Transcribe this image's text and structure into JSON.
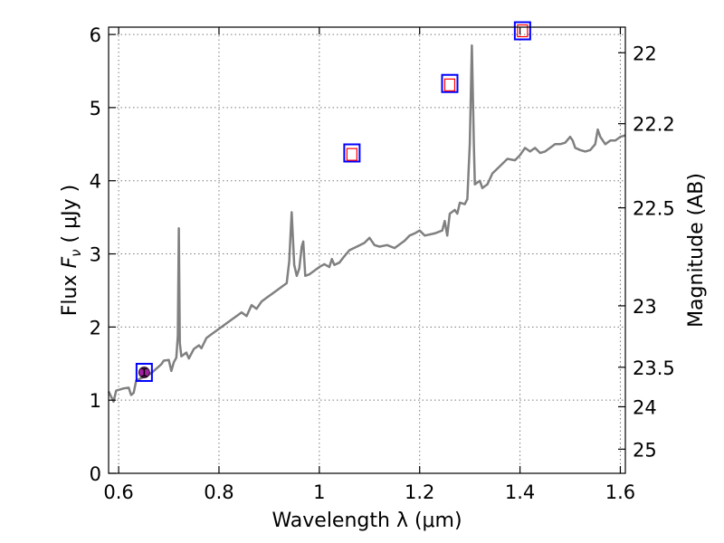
{
  "chart_data": {
    "type": "line",
    "xlabel": "Wavelength  λ (μm)",
    "ylabel": "Flux  F_ν  ( μJy )",
    "ylabel_parts": {
      "prefix": "Flux  ",
      "symbol": "F",
      "subscript": "ν",
      "suffix": "  ( μJy )"
    },
    "y2label": "Magnitude (AB)",
    "xlim": [
      0.58,
      1.61
    ],
    "ylim": [
      0,
      6.1
    ],
    "grid": true,
    "x_ticks": [
      0.6,
      0.8,
      1.0,
      1.2,
      1.4,
      1.6
    ],
    "x_tick_labels": [
      "0.6",
      "0.8",
      "1",
      "1.2",
      "1.4",
      "1.6"
    ],
    "y_ticks": [
      0,
      1,
      2,
      3,
      4,
      5,
      6
    ],
    "y_tick_labels": [
      "0",
      "1",
      "2",
      "3",
      "4",
      "5",
      "6"
    ],
    "y2_ticks": [
      {
        "label": "22",
        "flux": 5.75
      },
      {
        "label": "22.2",
        "flux": 4.78
      },
      {
        "label": "22.5",
        "flux": 3.63
      },
      {
        "label": "23",
        "flux": 2.29
      },
      {
        "label": "23.5",
        "flux": 1.45
      },
      {
        "label": "24",
        "flux": 0.91
      },
      {
        "label": "25",
        "flux": 0.33
      }
    ],
    "series": [
      {
        "kind": "spectrum",
        "color": "#808080",
        "points": [
          [
            0.58,
            1.12
          ],
          [
            0.59,
            0.98
          ],
          [
            0.595,
            1.13
          ],
          [
            0.61,
            1.16
          ],
          [
            0.62,
            1.17
          ],
          [
            0.625,
            1.07
          ],
          [
            0.63,
            1.1
          ],
          [
            0.635,
            1.27
          ],
          [
            0.645,
            1.3
          ],
          [
            0.655,
            1.33
          ],
          [
            0.665,
            1.37
          ],
          [
            0.675,
            1.43
          ],
          [
            0.685,
            1.49
          ],
          [
            0.69,
            1.54
          ],
          [
            0.7,
            1.55
          ],
          [
            0.705,
            1.4
          ],
          [
            0.71,
            1.52
          ],
          [
            0.715,
            1.58
          ],
          [
            0.718,
            1.88
          ],
          [
            0.72,
            3.35
          ],
          [
            0.722,
            1.78
          ],
          [
            0.725,
            1.6
          ],
          [
            0.735,
            1.65
          ],
          [
            0.74,
            1.57
          ],
          [
            0.75,
            1.7
          ],
          [
            0.76,
            1.75
          ],
          [
            0.765,
            1.71
          ],
          [
            0.775,
            1.85
          ],
          [
            0.785,
            1.9
          ],
          [
            0.795,
            1.95
          ],
          [
            0.805,
            2.0
          ],
          [
            0.815,
            2.05
          ],
          [
            0.825,
            2.1
          ],
          [
            0.835,
            2.15
          ],
          [
            0.845,
            2.2
          ],
          [
            0.855,
            2.15
          ],
          [
            0.865,
            2.3
          ],
          [
            0.875,
            2.25
          ],
          [
            0.885,
            2.35
          ],
          [
            0.895,
            2.4
          ],
          [
            0.905,
            2.45
          ],
          [
            0.915,
            2.5
          ],
          [
            0.925,
            2.55
          ],
          [
            0.935,
            2.6
          ],
          [
            0.94,
            2.9
          ],
          [
            0.945,
            3.57
          ],
          [
            0.95,
            2.85
          ],
          [
            0.955,
            2.7
          ],
          [
            0.96,
            2.8
          ],
          [
            0.965,
            3.1
          ],
          [
            0.968,
            3.17
          ],
          [
            0.972,
            2.7
          ],
          [
            0.98,
            2.72
          ],
          [
            0.99,
            2.77
          ],
          [
            1.0,
            2.82
          ],
          [
            1.01,
            2.86
          ],
          [
            1.02,
            2.82
          ],
          [
            1.025,
            2.93
          ],
          [
            1.03,
            2.85
          ],
          [
            1.04,
            2.88
          ],
          [
            1.05,
            2.97
          ],
          [
            1.06,
            3.05
          ],
          [
            1.075,
            3.1
          ],
          [
            1.09,
            3.15
          ],
          [
            1.1,
            3.22
          ],
          [
            1.11,
            3.12
          ],
          [
            1.12,
            3.1
          ],
          [
            1.135,
            3.12
          ],
          [
            1.15,
            3.08
          ],
          [
            1.17,
            3.18
          ],
          [
            1.18,
            3.25
          ],
          [
            1.19,
            3.28
          ],
          [
            1.2,
            3.32
          ],
          [
            1.21,
            3.25
          ],
          [
            1.23,
            3.28
          ],
          [
            1.245,
            3.32
          ],
          [
            1.25,
            3.45
          ],
          [
            1.255,
            3.25
          ],
          [
            1.26,
            3.55
          ],
          [
            1.27,
            3.6
          ],
          [
            1.275,
            3.55
          ],
          [
            1.28,
            3.7
          ],
          [
            1.29,
            3.68
          ],
          [
            1.295,
            3.75
          ],
          [
            1.3,
            4.5
          ],
          [
            1.304,
            5.85
          ],
          [
            1.308,
            4.5
          ],
          [
            1.31,
            3.95
          ],
          [
            1.32,
            4.0
          ],
          [
            1.325,
            3.9
          ],
          [
            1.335,
            3.95
          ],
          [
            1.345,
            4.1
          ],
          [
            1.36,
            4.2
          ],
          [
            1.375,
            4.3
          ],
          [
            1.39,
            4.28
          ],
          [
            1.4,
            4.35
          ],
          [
            1.41,
            4.45
          ],
          [
            1.42,
            4.4
          ],
          [
            1.43,
            4.45
          ],
          [
            1.44,
            4.38
          ],
          [
            1.45,
            4.4
          ],
          [
            1.46,
            4.45
          ],
          [
            1.47,
            4.5
          ],
          [
            1.48,
            4.5
          ],
          [
            1.49,
            4.52
          ],
          [
            1.5,
            4.6
          ],
          [
            1.505,
            4.55
          ],
          [
            1.51,
            4.45
          ],
          [
            1.52,
            4.42
          ],
          [
            1.53,
            4.4
          ],
          [
            1.54,
            4.42
          ],
          [
            1.55,
            4.5
          ],
          [
            1.555,
            4.7
          ],
          [
            1.56,
            4.6
          ],
          [
            1.57,
            4.5
          ],
          [
            1.58,
            4.55
          ],
          [
            1.59,
            4.55
          ],
          [
            1.6,
            4.6
          ],
          [
            1.61,
            4.62
          ]
        ]
      },
      {
        "kind": "photometry-squares",
        "edge_color": "#0000ff",
        "points": [
          [
            0.651,
            1.38
          ],
          [
            1.065,
            4.38
          ],
          [
            1.26,
            5.33
          ],
          [
            1.405,
            6.05
          ]
        ]
      },
      {
        "kind": "model-squares",
        "edge_color": "#ff0000",
        "points": [
          [
            1.065,
            4.36
          ],
          [
            1.26,
            5.31
          ],
          [
            1.405,
            6.05
          ]
        ]
      },
      {
        "kind": "measured-point",
        "color": "#a020a0",
        "points": [
          [
            0.651,
            1.38
          ]
        ],
        "yerr": [
          0.05
        ]
      }
    ]
  }
}
